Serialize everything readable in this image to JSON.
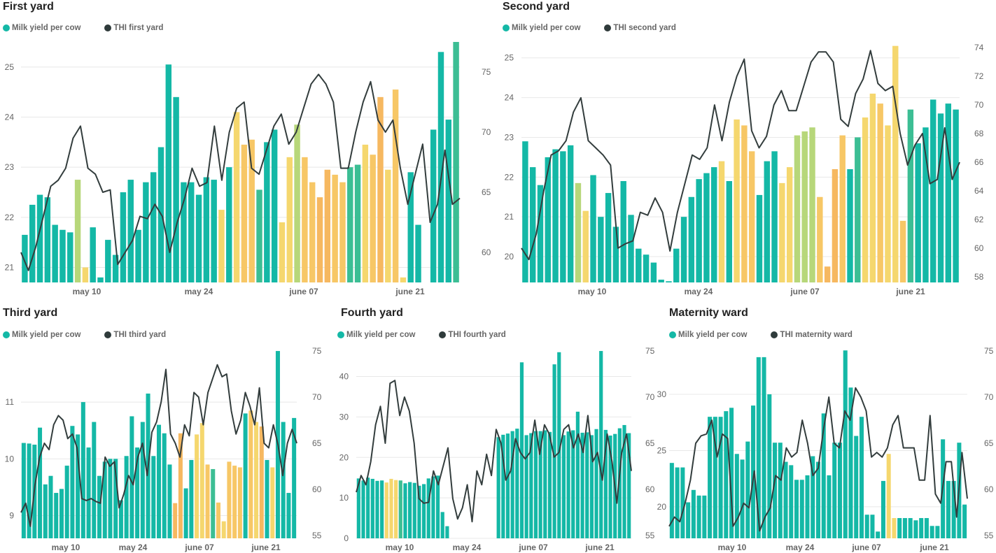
{
  "colors": {
    "bar_base": "#14b8a6",
    "line": "#333d3d",
    "legend_thi_dot": "#2f3b3b",
    "heat_scale": [
      "#14b8a6",
      "#3cbe94",
      "#b7d77a",
      "#f5d76e",
      "#f7c766",
      "#f6b860"
    ]
  },
  "chart_data": [
    {
      "type": "bar+line",
      "title": "First yard",
      "legend": [
        "Milk yield per cow",
        "THI first yard"
      ],
      "x_ticks": [
        "may 10",
        "may 24",
        "june 07",
        "june 21"
      ],
      "y_left_ticks": [
        21,
        22,
        23,
        24,
        25
      ],
      "y_left_range": [
        20.7,
        25.5
      ],
      "y_right_ticks": [
        60,
        65,
        70,
        75
      ],
      "y_right_range": [
        57.5,
        77.5
      ],
      "series": [
        {
          "name": "Milk yield per cow",
          "axis": "left",
          "values": [
            21.65,
            22.25,
            22.45,
            22.4,
            21.85,
            21.75,
            21.7,
            22.75,
            21.0,
            21.8,
            20.8,
            21.55,
            21.25,
            22.5,
            22.75,
            21.75,
            22.7,
            22.9,
            23.4,
            25.05,
            24.4,
            22.7,
            22.7,
            22.45,
            22.8,
            22.75,
            22.15,
            23.0,
            24.1,
            23.45,
            23.55,
            22.55,
            23.5,
            23.75,
            21.9,
            23.2,
            23.85,
            23.2,
            22.7,
            22.4,
            22.95,
            22.85,
            22.7,
            23.0,
            23.05,
            23.45,
            23.25,
            24.4,
            22.95,
            24.55,
            20.8,
            22.9,
            21.85,
            20.7,
            23.75,
            25.3,
            23.95,
            25.6
          ],
          "heat": [
            0,
            0,
            0,
            0,
            0,
            0,
            0,
            2,
            3,
            0,
            0,
            0,
            0,
            0,
            0,
            0,
            0,
            0,
            0,
            0,
            0,
            0,
            0,
            0,
            0,
            0,
            3,
            0,
            3,
            4,
            4,
            1,
            0,
            0,
            3,
            3,
            2,
            4,
            4,
            5,
            5,
            4,
            4,
            1,
            1,
            3,
            4,
            5,
            3,
            4,
            3,
            0,
            0,
            0,
            0,
            0,
            0,
            1
          ]
        },
        {
          "name": "THI first yard",
          "axis": "right",
          "values": [
            60.0,
            58.5,
            60.5,
            63.0,
            65.5,
            66.0,
            67.0,
            69.5,
            70.5,
            67.0,
            66.5,
            65.0,
            65.2,
            59.0,
            60.0,
            61.0,
            63.0,
            62.8,
            64.0,
            63.0,
            60.0,
            62.5,
            64.5,
            67.0,
            65.5,
            65.8,
            70.5,
            66.0,
            70.0,
            72.0,
            72.5,
            67.0,
            66.5,
            68.5,
            70.5,
            71.5,
            69.0,
            70.0,
            72.0,
            74.0,
            74.8,
            74.0,
            72.5,
            67.0,
            67.0,
            70.0,
            72.5,
            74.2,
            71.0,
            70.0,
            71.0,
            67.0,
            64.0,
            66.5,
            69.0,
            62.5,
            64.0,
            68.5,
            64.0,
            64.5
          ]
        }
      ]
    },
    {
      "type": "bar+line",
      "title": "Second yard",
      "legend": [
        "Milk yield per cow",
        "THI second yard"
      ],
      "x_ticks": [
        "may 10",
        "may 24",
        "june 07",
        "june 21"
      ],
      "y_left_ticks": [
        20,
        21,
        22,
        23,
        24,
        25
      ],
      "y_left_range": [
        19.35,
        25.4
      ],
      "y_right_ticks": [
        58,
        60,
        62,
        64,
        66,
        68,
        70,
        72,
        74
      ],
      "y_right_range": [
        57.6,
        74.4
      ],
      "series": [
        {
          "name": "Milk yield per cow",
          "axis": "left",
          "values": [
            22.9,
            22.25,
            21.8,
            22.5,
            22.7,
            22.65,
            22.8,
            21.85,
            21.15,
            22.05,
            21.0,
            21.6,
            20.75,
            21.9,
            21.05,
            20.2,
            20.05,
            19.85,
            19.42,
            19.38,
            20.2,
            21.0,
            21.5,
            21.95,
            22.1,
            22.25,
            22.4,
            21.9,
            23.45,
            23.3,
            22.65,
            21.55,
            22.4,
            22.65,
            21.85,
            22.25,
            23.05,
            23.15,
            23.25,
            21.5,
            19.75,
            22.2,
            23.05,
            22.2,
            23.0,
            23.5,
            24.1,
            23.85,
            23.3,
            25.3,
            20.9,
            23.7,
            22.85,
            23.25,
            23.95,
            23.6,
            23.85,
            23.7
          ],
          "heat": [
            0,
            0,
            0,
            0,
            0,
            0,
            0,
            2,
            3,
            0,
            0,
            0,
            0,
            0,
            0,
            0,
            0,
            0,
            0,
            0,
            0,
            0,
            0,
            0,
            0,
            0,
            3,
            0,
            3,
            4,
            4,
            0,
            0,
            0,
            3,
            3,
            2,
            2,
            2,
            4,
            5,
            5,
            4,
            0,
            1,
            3,
            3,
            4,
            3,
            3,
            4,
            1,
            0,
            0,
            0,
            0,
            0,
            0
          ]
        },
        {
          "name": "THI second yard",
          "axis": "right",
          "values": [
            60.0,
            59.2,
            61.0,
            64.0,
            66.5,
            66.8,
            67.5,
            69.5,
            70.5,
            67.5,
            67.0,
            66.5,
            65.8,
            60.0,
            60.3,
            60.5,
            62.5,
            62.3,
            63.5,
            62.5,
            59.8,
            62.5,
            64.5,
            66.5,
            66.2,
            67.0,
            70.0,
            67.5,
            70.2,
            72.0,
            73.2,
            68.2,
            67.0,
            67.8,
            70.0,
            71.0,
            69.6,
            69.6,
            71.3,
            73.0,
            73.7,
            73.7,
            73.0,
            69.0,
            68.5,
            70.8,
            71.8,
            73.8,
            71.5,
            71.0,
            71.3,
            68.0,
            65.8,
            67.2,
            68.0,
            64.5,
            64.8,
            68.4,
            64.8,
            66.0
          ]
        }
      ]
    },
    {
      "type": "bar+line",
      "title": "Third yard",
      "legend": [
        "Milk yield per cow",
        "THI third yard"
      ],
      "x_ticks": [
        "may 10",
        "may 24",
        "june 07",
        "june 21"
      ],
      "y_left_ticks": [
        9,
        10,
        11
      ],
      "y_left_range": [
        8.6,
        11.95
      ],
      "y_right_ticks": [
        55,
        60,
        65,
        70,
        75
      ],
      "y_right_range": [
        54.7,
        75.3
      ],
      "series": [
        {
          "name": "Milk yield per cow",
          "axis": "left",
          "values": [
            10.28,
            10.27,
            10.25,
            10.55,
            9.55,
            9.7,
            9.4,
            9.47,
            9.88,
            10.58,
            10.43,
            11.0,
            10.2,
            10.65,
            9.7,
            9.95,
            10.0,
            10.0,
            9.27,
            10.05,
            10.75,
            10.2,
            10.65,
            11.15,
            10.05,
            10.6,
            10.45,
            9.9,
            9.22,
            10.45,
            9.48,
            9.98,
            10.43,
            10.63,
            9.9,
            9.82,
            9.23,
            8.9,
            9.95,
            9.88,
            9.85,
            10.8,
            10.85,
            10.65,
            10.57,
            9.98,
            9.85,
            11.9,
            10.65,
            9.4,
            10.72
          ],
          "heat": [
            0,
            0,
            0,
            0,
            0,
            0,
            0,
            0,
            0,
            0,
            0,
            0,
            0,
            0,
            0,
            0,
            0,
            0,
            0,
            0,
            0,
            0,
            0,
            0,
            0,
            0,
            0,
            0,
            5,
            5,
            0,
            0,
            3,
            3,
            4,
            1,
            4,
            3,
            4,
            4,
            4,
            0,
            4,
            3,
            5,
            0,
            3,
            0,
            0,
            0,
            0
          ]
        },
        {
          "name": "THI third yard",
          "axis": "right",
          "values": [
            57.5,
            58.5,
            56.0,
            60.5,
            63.5,
            65.0,
            64.3,
            67.0,
            68.0,
            67.5,
            65.5,
            66.0,
            64.5,
            59.0,
            58.8,
            59.0,
            58.7,
            58.5,
            63.5,
            62.5,
            63.0,
            58.0,
            59.5,
            61.5,
            60.5,
            63.5,
            65.0,
            61.5,
            66.2,
            67.3,
            69.5,
            73.0,
            66.0,
            65.0,
            63.5,
            67.0,
            65.8,
            70.5,
            70.0,
            67.0,
            70.5,
            72.0,
            73.5,
            72.2,
            72.5,
            68.5,
            66.0,
            67.5,
            70.5,
            69.0,
            67.0,
            71.0,
            65.0,
            64.5,
            67.0,
            64.8,
            61.5,
            65.0,
            66.5,
            65.0
          ]
        }
      ]
    },
    {
      "type": "bar+line",
      "title": "Fourth yard",
      "legend": [
        "Milk yield per cow",
        "THI fourth yard"
      ],
      "x_ticks": [
        "may 10",
        "may 24",
        "june 07",
        "june 21"
      ],
      "y_left_ticks": [
        0,
        10,
        20,
        30,
        40
      ],
      "y_left_range": [
        0,
        47
      ],
      "y_right_ticks": [
        55,
        60,
        65,
        70,
        75
      ],
      "y_right_range": [
        54.7,
        75.3
      ],
      "series": [
        {
          "name": "Milk yield per cow",
          "axis": "left",
          "values": [
            14.8,
            14.3,
            15.0,
            14.7,
            14.2,
            14.3,
            13.8,
            14.7,
            14.4,
            14.3,
            13.6,
            13.9,
            13.7,
            13.0,
            13.4,
            14.8,
            15.3,
            15.5,
            6.5,
            3.0,
            0,
            0,
            0,
            0,
            0,
            0,
            0,
            0,
            0,
            0,
            25.0,
            25.6,
            25.9,
            26.5,
            27.1,
            43.5,
            25.5,
            26.0,
            26.5,
            26.5,
            26.7,
            26.3,
            43.0,
            46.0,
            25.5,
            26.4,
            26.7,
            31.3,
            26.1,
            26.2,
            25.5,
            27.0,
            46.3,
            26.8,
            25.4,
            25.8,
            27.2,
            28.0,
            26.0
          ],
          "heat": [
            0,
            0,
            0,
            0,
            0,
            0,
            3,
            3,
            3,
            1,
            0,
            0,
            0,
            0,
            0,
            0,
            0,
            0,
            0,
            0,
            0,
            0,
            0,
            0,
            0,
            0,
            0,
            0,
            0,
            0,
            0,
            0,
            0,
            0,
            0,
            0,
            0,
            0,
            0,
            0,
            0,
            0,
            0,
            0,
            0,
            0,
            0,
            0,
            0,
            0,
            0,
            0,
            0,
            0,
            0,
            0,
            0,
            0,
            0
          ]
        },
        {
          "name": "THI fourth yard",
          "axis": "right",
          "values": [
            59.7,
            61.5,
            60.5,
            63.0,
            67.0,
            69.0,
            65.0,
            71.5,
            71.8,
            68.0,
            70.0,
            68.5,
            65.0,
            59.0,
            58.5,
            58.6,
            62.0,
            60.5,
            62.5,
            64.5,
            59.0,
            56.8,
            58.0,
            60.5,
            56.5,
            62.0,
            60.5,
            63.8,
            61.5,
            66.5,
            65.0,
            61.0,
            62.0,
            65.5,
            64.0,
            63.3,
            64.0,
            67.5,
            63.8,
            67.0,
            66.0,
            63.5,
            64.0,
            66.5,
            67.0,
            64.5,
            66.0,
            64.0,
            68.0,
            63.0,
            64.0,
            61.0,
            66.0,
            63.0,
            58.5,
            64.0,
            66.0,
            62.0
          ]
        }
      ]
    },
    {
      "type": "bar+line",
      "title": "Maternity ward",
      "legend": [
        "Milk yield per cow",
        "THI maternity ward"
      ],
      "x_ticks": [
        "may 10",
        "may 24",
        "june 07",
        "june 21"
      ],
      "y_left_ticks": [
        20,
        25,
        30
      ],
      "y_left_range": [
        17.2,
        34.1
      ],
      "y_right_ticks": [
        55,
        60,
        65,
        70,
        75
      ],
      "y_right_range": [
        54.7,
        75.3
      ],
      "series": [
        {
          "name": "Milk yield per cow",
          "axis": "left",
          "values": [
            23.9,
            23.5,
            23.5,
            20.4,
            21.5,
            21.0,
            21.0,
            28.0,
            28.0,
            28.0,
            28.5,
            28.8,
            24.7,
            24.2,
            25.8,
            29.0,
            33.3,
            33.3,
            30.0,
            25.7,
            25.7,
            24.0,
            23.7,
            22.4,
            22.4,
            22.8,
            24.5,
            24.0,
            28.3,
            22.8,
            25.7,
            25.7,
            33.9,
            30.6,
            26.3,
            28.0,
            19.3,
            19.3,
            17.8,
            22.3,
            24.7,
            19.0,
            19.0,
            19.0,
            19.0,
            18.8,
            19.0,
            19.0,
            18.3,
            18.3,
            26.0,
            22.3,
            22.3,
            25.7,
            20.2
          ],
          "heat": [
            0,
            0,
            0,
            0,
            0,
            0,
            0,
            0,
            0,
            0,
            0,
            0,
            0,
            0,
            0,
            0,
            0,
            0,
            0,
            0,
            0,
            0,
            0,
            0,
            0,
            0,
            0,
            0,
            0,
            0,
            0,
            0,
            0,
            0,
            0,
            0,
            0,
            0,
            0,
            0,
            3,
            3,
            0,
            0,
            0,
            0,
            0,
            0,
            0,
            0,
            0,
            0,
            0,
            0,
            0
          ]
        },
        {
          "name": "THI maternity ward",
          "axis": "right",
          "values": [
            56.0,
            57.0,
            56.5,
            58.5,
            61.0,
            65.0,
            65.8,
            66.0,
            67.5,
            63.5,
            66.0,
            65.5,
            56.0,
            57.0,
            58.5,
            58.0,
            62.0,
            55.5,
            57.0,
            58.0,
            61.5,
            61.0,
            64.5,
            63.5,
            64.0,
            67.5,
            65.0,
            61.5,
            62.3,
            66.5,
            70.0,
            65.0,
            64.5,
            68.5,
            67.5,
            71.0,
            70.0,
            68.5,
            63.5,
            64.0,
            63.5,
            64.5,
            67.0,
            68.0,
            64.5,
            64.5,
            64.5,
            61.0,
            61.0,
            68.0,
            59.5,
            58.5,
            63.0,
            63.0,
            57.0,
            64.0,
            59.0
          ]
        }
      ]
    }
  ]
}
